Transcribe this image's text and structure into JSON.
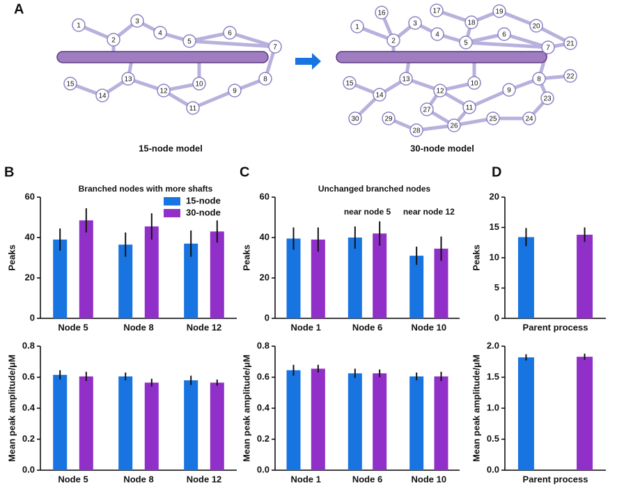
{
  "panels": [
    "A",
    "B",
    "C",
    "D"
  ],
  "diagram": {
    "models": [
      {
        "caption": "15-node model",
        "nodes": [
          1,
          2,
          3,
          4,
          5,
          6,
          7,
          8,
          9,
          10,
          11,
          12,
          13,
          14,
          15
        ]
      },
      {
        "caption": "30-node model",
        "nodes": [
          1,
          2,
          3,
          4,
          5,
          6,
          7,
          8,
          9,
          10,
          11,
          12,
          13,
          14,
          15,
          16,
          17,
          18,
          19,
          20,
          21,
          22,
          23,
          24,
          25,
          26,
          27,
          28,
          29,
          30
        ]
      }
    ]
  },
  "chart_data": [
    {
      "type": "bar",
      "title": "Branched nodes with more shafts",
      "ylabel": "Peaks",
      "legend": true,
      "categories": [
        "Node 5",
        "Node 8",
        "Node 12"
      ],
      "series": [
        {
          "name": "15-node",
          "color": "#1874e0",
          "values": [
            39,
            36.5,
            37
          ],
          "errors": [
            5.5,
            6,
            6.5
          ]
        },
        {
          "name": "30-node",
          "color": "#9130c8",
          "values": [
            48.5,
            45.5,
            43
          ],
          "errors": [
            6,
            6.5,
            5.5
          ]
        }
      ],
      "ylim": [
        0,
        60
      ],
      "yticks": [
        0,
        20,
        40,
        60
      ]
    },
    {
      "type": "bar",
      "ylabel": "Mean peak amplitude/μM",
      "categories": [
        "Node 5",
        "Node 8",
        "Node 12"
      ],
      "series": [
        {
          "color": "#1874e0",
          "values": [
            0.615,
            0.605,
            0.58
          ],
          "errors": [
            0.03,
            0.025,
            0.03
          ]
        },
        {
          "color": "#9130c8",
          "values": [
            0.605,
            0.565,
            0.565
          ],
          "errors": [
            0.03,
            0.025,
            0.02
          ]
        }
      ],
      "ylim": [
        0,
        0.8
      ],
      "yticks": [
        {
          "value": 0,
          "label": "0.0"
        },
        0.2,
        0.4,
        0.6,
        0.8
      ]
    },
    {
      "type": "bar",
      "title": "Unchanged branched nodes",
      "ylabel": "Peaks",
      "annotations": [
        null,
        "near node 5",
        "near node 12"
      ],
      "categories": [
        "Node 1",
        "Node 6",
        "Node 10"
      ],
      "series": [
        {
          "color": "#1874e0",
          "values": [
            39.5,
            40,
            31
          ],
          "errors": [
            5.5,
            5.5,
            4.5
          ]
        },
        {
          "color": "#9130c8",
          "values": [
            39,
            42,
            34.5
          ],
          "errors": [
            6,
            6,
            6
          ]
        }
      ],
      "ylim": [
        0,
        60
      ],
      "yticks": [
        0,
        20,
        40,
        60
      ]
    },
    {
      "type": "bar",
      "ylabel": "Mean peak amplitude/μM",
      "categories": [
        "Node 1",
        "Node 6",
        "Node 10"
      ],
      "series": [
        {
          "color": "#1874e0",
          "values": [
            0.645,
            0.625,
            0.605
          ],
          "errors": [
            0.035,
            0.03,
            0.025
          ]
        },
        {
          "color": "#9130c8",
          "values": [
            0.655,
            0.625,
            0.605
          ],
          "errors": [
            0.025,
            0.025,
            0.03
          ]
        }
      ],
      "ylim": [
        0,
        0.8
      ],
      "yticks": [
        {
          "value": 0,
          "label": "0.0"
        },
        0.2,
        0.4,
        0.6,
        0.8
      ]
    },
    {
      "type": "bar",
      "ylabel": "Peaks",
      "categories": [
        "Parent process"
      ],
      "series": [
        {
          "color": "#1874e0",
          "values": [
            13.4
          ],
          "errors": [
            1.5
          ]
        },
        {
          "color": "#9130c8",
          "values": [
            13.8
          ],
          "errors": [
            1.2
          ]
        }
      ],
      "ylim": [
        0,
        20
      ],
      "yticks": [
        0,
        5,
        10,
        15,
        20
      ]
    },
    {
      "type": "bar",
      "ylabel": "Mean peak amplitude/μM",
      "categories": [
        "Parent process"
      ],
      "series": [
        {
          "color": "#1874e0",
          "values": [
            1.82
          ],
          "errors": [
            0.05
          ]
        },
        {
          "color": "#9130c8",
          "values": [
            1.83
          ],
          "errors": [
            0.05
          ]
        }
      ],
      "ylim": [
        0,
        2
      ],
      "yticks": [
        {
          "value": 0,
          "label": "0.0"
        },
        0.5,
        {
          "value": 1,
          "label": "1.0"
        },
        1.5,
        {
          "value": 2,
          "label": "2.0"
        }
      ]
    }
  ]
}
